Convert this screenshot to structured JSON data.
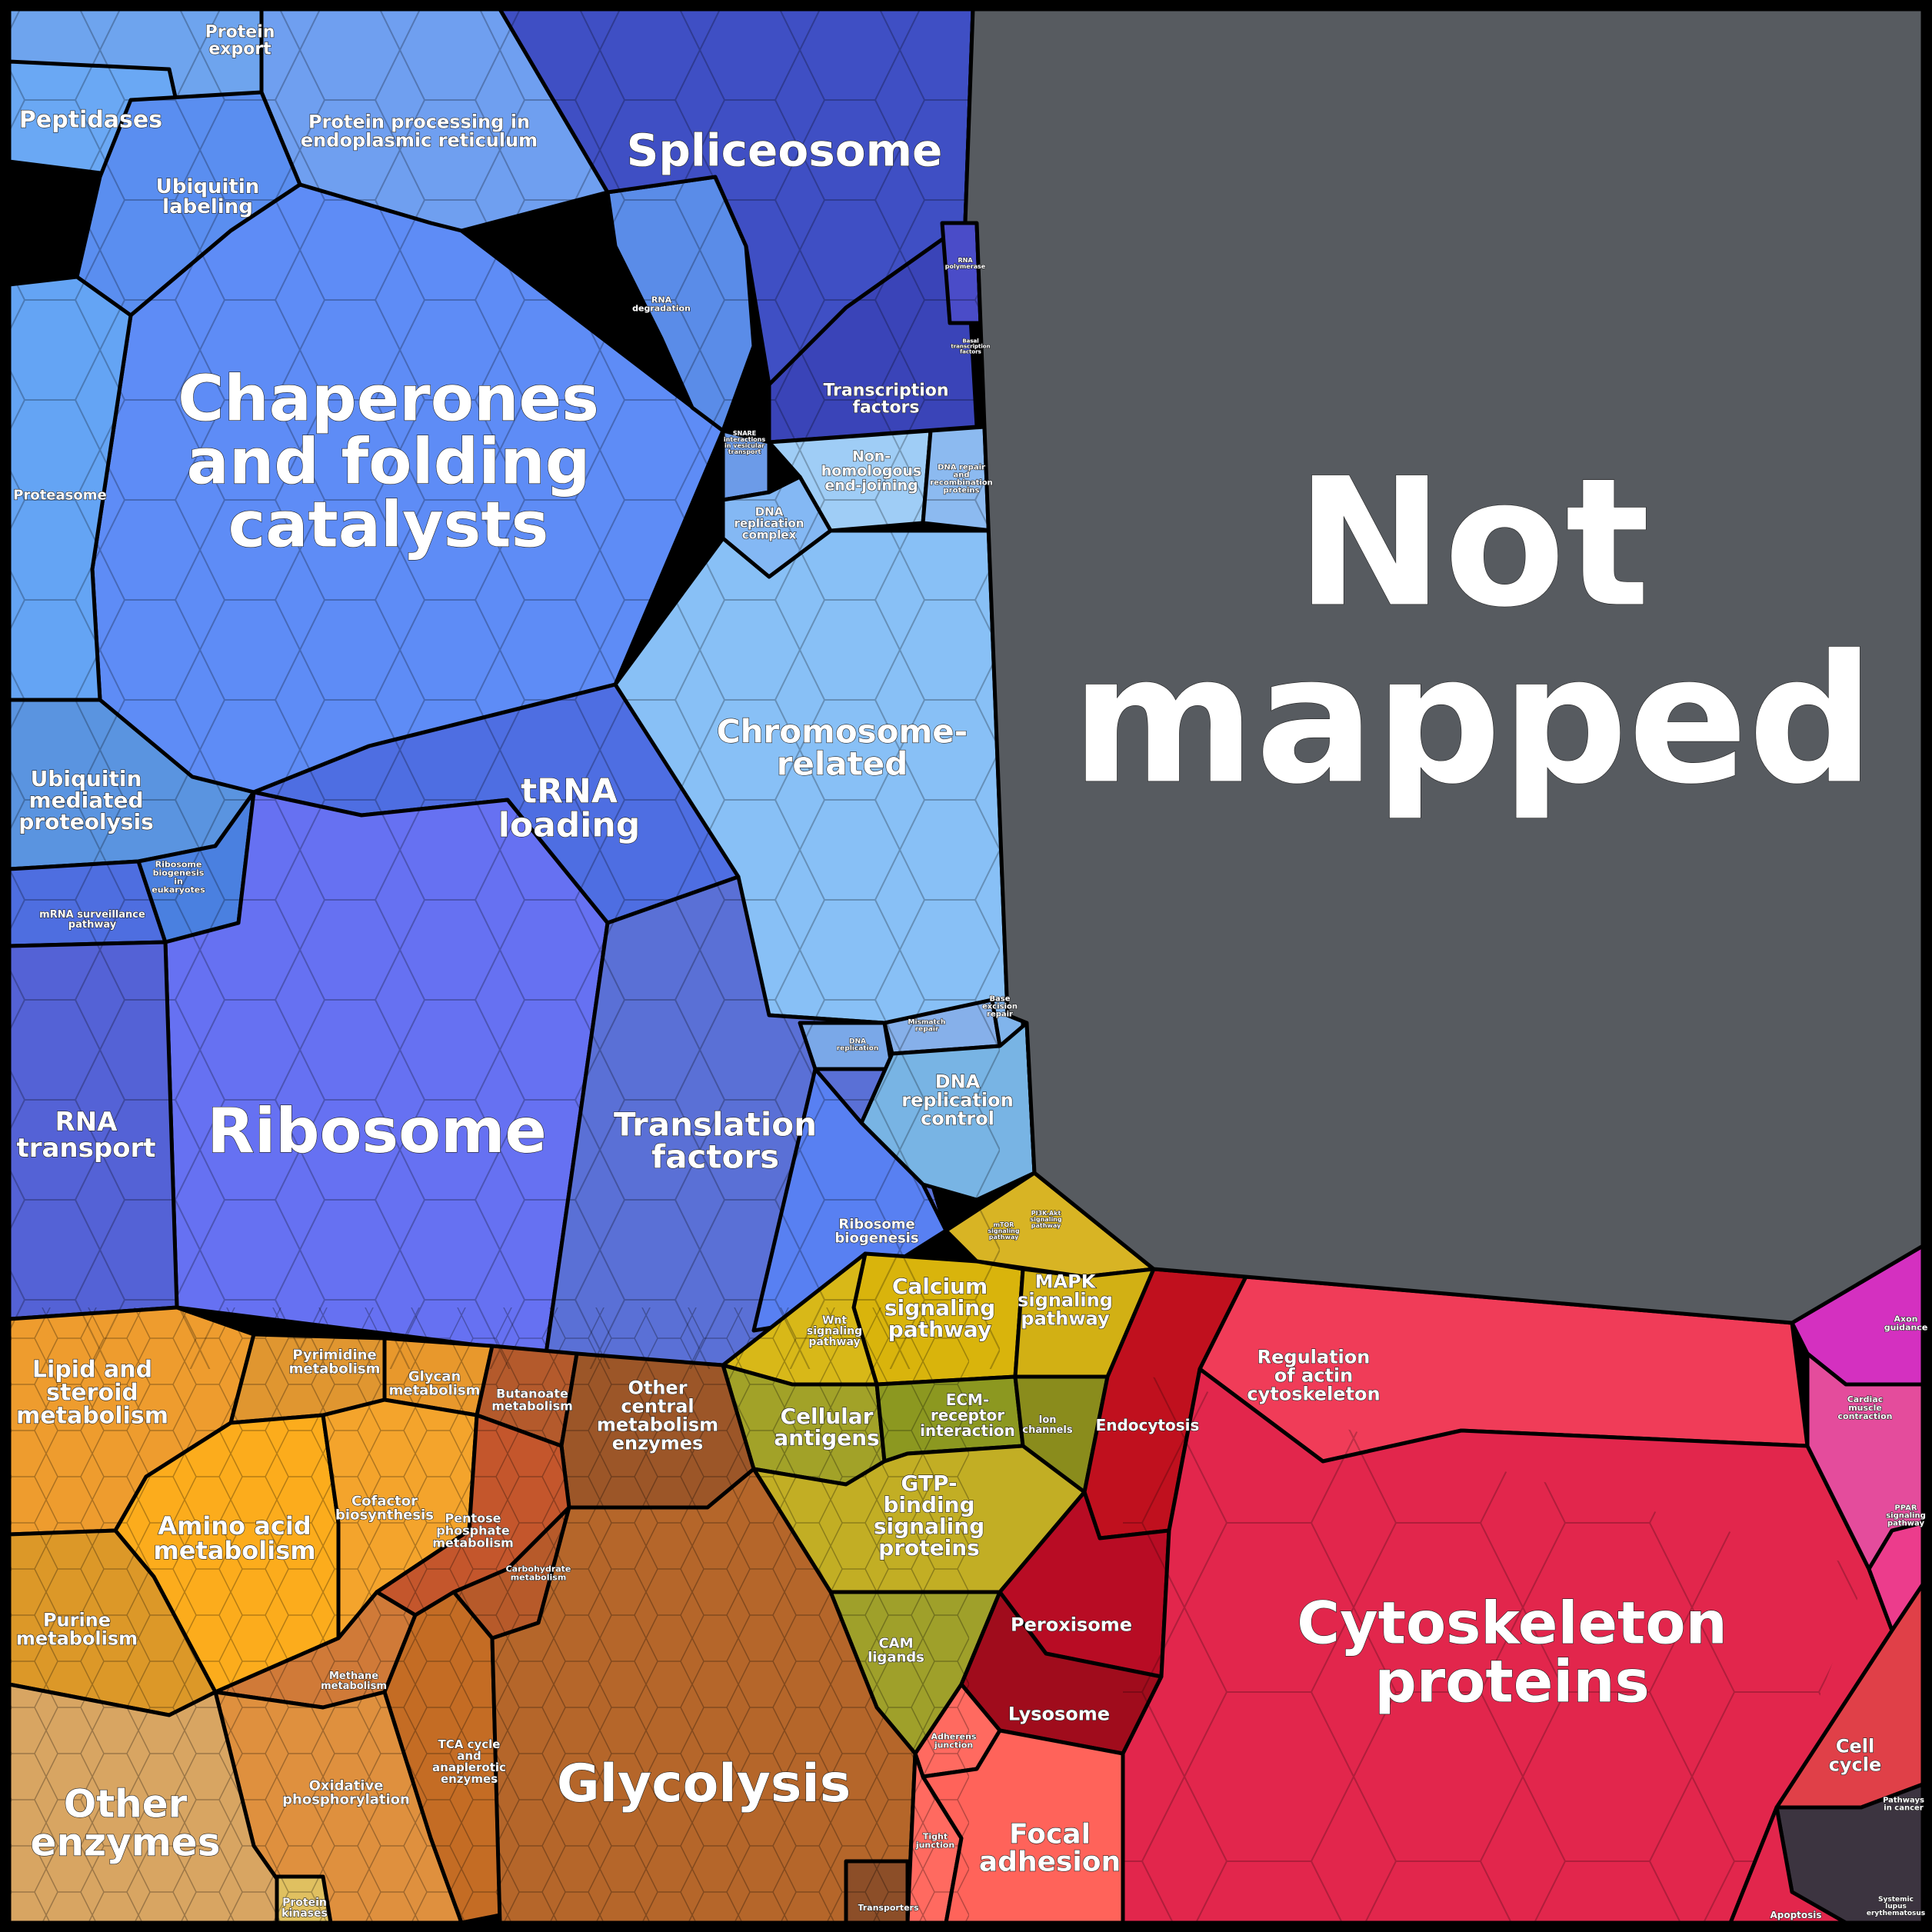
{
  "colors": {
    "background": "#000000",
    "not_mapped": "#575b60",
    "genetic_processing_light": "#6fa6f2",
    "genetic_processing_mid": "#5c8bf2",
    "genetic_processing_dark": "#4f63d8",
    "spliceosome": "#3d4dc0",
    "chromosome": "#88c0f4",
    "metabolism_orange": "#f0a530",
    "metabolism_brown": "#b76624",
    "other_enzymes": "#d4a060",
    "signaling_yellow": "#d4b41c",
    "signaling_olive": "#a0a020",
    "cellular_red": "#e8304c",
    "cellular_salmon": "#ff6258",
    "organismal_magenta": "#d43c94",
    "disease_dark": "#3c3440"
  },
  "labels": {
    "protein_export": "Protein export",
    "peptidases": "Peptidases",
    "protein_processing": "Protein processing in endoplasmic reticulum",
    "ubiquitin_labeling": "Ubiquitin labeling",
    "spliceosome": "Spliceosome",
    "rna_degradation": "RNA degradation",
    "rna_polymerase": "RNA polymerase",
    "basal_transcription": "Basal transcription factors",
    "transcription_factors": "Transcription factors",
    "snare": "SNARE interactions in vesicular transport",
    "chaperones": "Chaperones and folding catalysts",
    "proteasome": "Proteasome",
    "nhej": "Non-homologous end-joining",
    "dna_repair": "DNA repair and recombination proteins",
    "dna_replication_complex": "DNA replication complex",
    "chromosome": "Chromosome-related",
    "trna": "tRNA loading",
    "ubiquitin_proteolysis": "Ubiquitin mediated proteolysis",
    "ribosome_biogenesis_euk": "Ribosome biogenesis in eukaryotes",
    "mrna_surveillance": "mRNA surveillance pathway",
    "ribosome": "Ribosome",
    "rna_transport": "RNA transport",
    "translation_factors": "Translation factors",
    "mismatch_repair": "Mismatch repair",
    "base_excision": "Base excision repair",
    "dna_replication": "DNA replication",
    "dna_replication_control": "DNA replication control",
    "ribosome_biogenesis": "Ribosome biogenesis",
    "not_mapped": "Not mapped",
    "pi3k": "PI3K-Akt signaling pathway",
    "mtor": "mTOR signaling pathway",
    "calcium": "Calcium signaling pathway",
    "mapk": "MAPK signaling pathway",
    "wnt": "Wnt signaling pathway",
    "cellular_antigens": "Cellular antigens",
    "ecm": "ECM-receptor interaction",
    "ion_channels": "Ion channels",
    "gtp": "GTP-binding signaling proteins",
    "cam": "CAM ligands",
    "lipid": "Lipid and steroid metabolism",
    "pyrimidine": "Pyrimidine metabolism",
    "glycan": "Glycan metabolism",
    "butanoate": "Butanoate metabolism",
    "other_central": "Other central metabolism enzymes",
    "cofactor": "Cofactor biosynthesis",
    "amino_acid": "Amino acid metabolism",
    "pentose": "Pentose phosphate metabolism",
    "carbohydrate": "Carbohydrate metabolism",
    "purine": "Purine metabolism",
    "methane": "Methane metabolism",
    "tca": "TCA cycle and anaplerotic enzymes",
    "glycolysis": "Glycolysis",
    "oxidative": "Oxidative phosphorylation",
    "other_enzymes": "Other enzymes",
    "protein_kinases": "Protein kinases",
    "transporters": "Transporters",
    "endocytosis": "Endocytosis",
    "regulation_actin": "Regulation of actin cytoskeleton",
    "peroxisome": "Peroxisome",
    "lysosome": "Lysosome",
    "cytoskeleton": "Cytoskeleton proteins",
    "adherens": "Adherens junction",
    "tight_junction": "Tight junction",
    "focal_adhesion": "Focal adhesion",
    "axon_guidance": "Axon guidance",
    "cardiac": "Cardiac muscle contraction",
    "ppar": "PPAR signaling pathway",
    "cell_cycle": "Cell cycle",
    "pathways_cancer": "Pathways in cancer",
    "apoptosis": "Apoptosis",
    "lupus": "Systemic lupus erythematosus"
  }
}
